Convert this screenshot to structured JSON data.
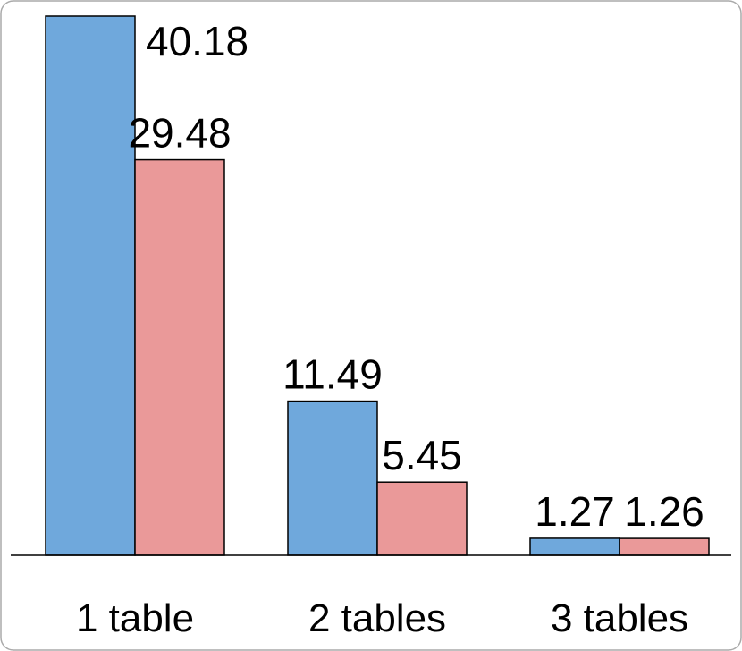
{
  "chart_data": {
    "type": "bar",
    "categories": [
      "1 table",
      "2 tables",
      "3 tables"
    ],
    "series": [
      {
        "color": "#6fa8dc",
        "values": [
          40.18,
          11.49,
          1.27
        ]
      },
      {
        "color": "#ea9999",
        "values": [
          29.48,
          5.45,
          1.26
        ]
      }
    ]
  }
}
